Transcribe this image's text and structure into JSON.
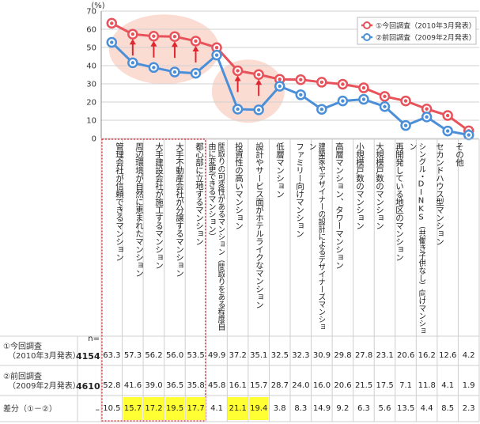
{
  "chart_data": {
    "type": "line",
    "y_unit": "(%)",
    "yticks": [
      0,
      10,
      20,
      30,
      40,
      50,
      60,
      70
    ],
    "ylim": [
      0,
      70
    ],
    "grid": true,
    "legend_position": "top-right",
    "categories": [
      "管理会社が信頼できるマンション",
      "周辺環境が自然に恵まれたマンション",
      "大手建設会社が施工するマンション",
      "大手不動産会社が分譲するマンション",
      "都心部に立地するマンション",
      "間取りの可変性があるマンション（間取りをある程度自由に変更できるマンション）",
      "投資性の高いマンション",
      "設計やサービス面がホテルライクなマンション",
      "低層マンション",
      "ファミリー向けマンション",
      "建築家やデザイナーの設計によるデザイナーズマンション",
      "高層マンション、タワーマンション",
      "小規模戸数のマンション",
      "大規模戸数のマンション",
      "再開発している地区のマンション",
      "シングル・DINKS（共働き子供なし）向けマンション",
      "セカンドハウス型マンション",
      "その他"
    ],
    "series": [
      {
        "name": "①今回調査（2010年3月発表）",
        "color": "#e8525a",
        "values": [
          63.3,
          57.3,
          56.2,
          56.0,
          53.5,
          49.9,
          37.2,
          35.1,
          32.5,
          32.3,
          30.9,
          29.8,
          27.8,
          23.1,
          20.6,
          16.2,
          12.6,
          4.2
        ]
      },
      {
        "name": "②前回調査（2009年2月発表）",
        "color": "#4a8fd8",
        "values": [
          52.8,
          41.6,
          39.0,
          36.5,
          35.8,
          45.8,
          16.1,
          15.7,
          28.7,
          24.0,
          16.0,
          20.6,
          21.5,
          17.5,
          7.1,
          11.8,
          4.1,
          1.9
        ]
      }
    ],
    "diff": [
      "10.5",
      "15.7",
      "17.2",
      "19.5",
      "17.7",
      "4.1",
      "21.1",
      "19.4",
      "3.8",
      "8.3",
      "14.9",
      "9.2",
      "6.3",
      "5.6",
      "13.5",
      "4.4",
      "8.5",
      "2.3"
    ],
    "highlighted_indices": [
      1,
      2,
      3,
      4,
      6,
      7
    ],
    "table": {
      "n_header": "n=",
      "rows": [
        {
          "label_1": "①今回調査",
          "label_2": "（2010年3月発表）",
          "n": "4154",
          "cells": [
            "63.3",
            "57.3",
            "56.2",
            "56.0",
            "53.5",
            "49.9",
            "37.2",
            "35.1",
            "32.5",
            "32.3",
            "30.9",
            "29.8",
            "27.8",
            "23.1",
            "20.6",
            "16.2",
            "12.6",
            "4.2"
          ]
        },
        {
          "label_1": "②前回調査",
          "label_2": "（2009年2月発表）",
          "n": "4610",
          "cells": [
            "52.8",
            "41.6",
            "39.0",
            "36.5",
            "35.8",
            "45.8",
            "16.1",
            "15.7",
            "28.7",
            "24.0",
            "16.0",
            "20.6",
            "21.5",
            "17.5",
            "7.1",
            "11.8",
            "4.1",
            "1.9"
          ]
        },
        {
          "label_1": "差分（①－②）",
          "label_2": "",
          "n": "–"
        }
      ]
    },
    "colors": {
      "current": "#e8525a",
      "previous": "#4a8fd8",
      "highlight_cell": "#ffff33",
      "circle_fill": "#f9d3c8",
      "arrow": "#e0262f",
      "dotted_box": "#e0262f"
    }
  }
}
